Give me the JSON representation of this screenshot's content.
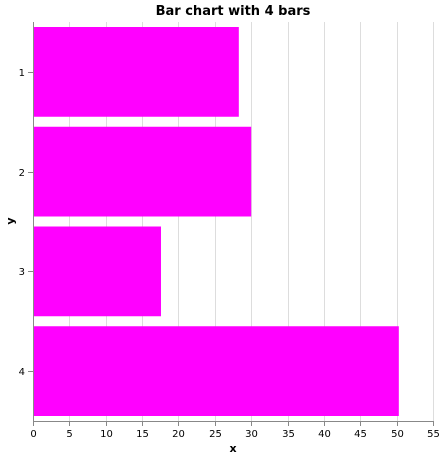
{
  "chart_data": {
    "type": "bar",
    "orientation": "horizontal",
    "title": "Bar chart with 4 bars",
    "xlabel": "x",
    "ylabel": "y",
    "categories": [
      "1",
      "2",
      "3",
      "4"
    ],
    "values": [
      28.3,
      30,
      17.6,
      50.3
    ],
    "xlim": [
      0,
      55
    ],
    "xticks": [
      0,
      5,
      10,
      15,
      20,
      25,
      30,
      35,
      40,
      45,
      50,
      55
    ],
    "grid": "vertical",
    "bar_color": "#ff00ff"
  }
}
